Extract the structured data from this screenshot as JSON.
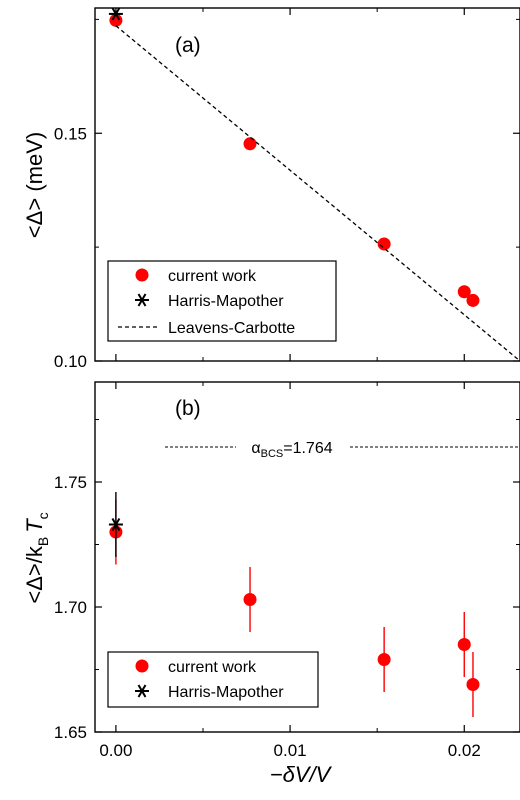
{
  "chart_data": [
    {
      "panel": "(a)",
      "type": "scatter",
      "title": "",
      "xlabel": "",
      "ylabel": "<Δ> (meV)",
      "xlim": [
        -0.0012,
        0.0232
      ],
      "ylim": [
        0.1,
        0.1775
      ],
      "y_ticks": [
        "0.10",
        "0.15"
      ],
      "y_tick_values": [
        0.1,
        0.15
      ],
      "x_ticks": [],
      "x_tick_values": [
        0,
        0.01,
        0.02
      ],
      "grid": false,
      "legend_position": "bottom-left",
      "series": [
        {
          "name": "current work",
          "marker": "filled-circle",
          "color": "#ff0000",
          "x": [
            0.0,
            0.0077,
            0.0154,
            0.02,
            0.0205
          ],
          "y": [
            0.1748,
            0.1477,
            0.1257,
            0.1152,
            0.1133
          ],
          "yerr": [
            0.0014,
            0.0014,
            0.0014,
            0.0014,
            0.0014
          ]
        },
        {
          "name": "Harris-Mapother",
          "marker": "asterisk",
          "color": "#000000",
          "x": [
            0.0
          ],
          "y": [
            0.1762
          ]
        },
        {
          "name": "Leavens-Carbotte",
          "type": "line",
          "style": "dashed",
          "color": "#000000",
          "x": [
            0.0,
            0.0232
          ],
          "y": [
            0.1736,
            0.1
          ]
        }
      ]
    },
    {
      "panel": "(b)",
      "type": "scatter",
      "title": "",
      "xlabel": "−δV/V",
      "ylabel": "<Δ>/kBTc",
      "xlim": [
        -0.0012,
        0.0232
      ],
      "ylim": [
        1.65,
        1.79
      ],
      "y_ticks": [
        "1.65",
        "1.70",
        "1.75"
      ],
      "y_tick_values": [
        1.65,
        1.7,
        1.75
      ],
      "x_ticks": [
        "0.00",
        "0.01",
        "0.02"
      ],
      "x_tick_values": [
        0,
        0.01,
        0.02
      ],
      "grid": false,
      "legend_position": "bottom-left",
      "series": [
        {
          "name": "current work",
          "marker": "filled-circle",
          "color": "#ff0000",
          "x": [
            0.0,
            0.0077,
            0.0154,
            0.02,
            0.0205
          ],
          "y": [
            1.73,
            1.703,
            1.679,
            1.685,
            1.669
          ],
          "yerr": [
            0.013,
            0.013,
            0.013,
            0.013,
            0.013
          ]
        },
        {
          "name": "Harris-Mapother",
          "marker": "asterisk",
          "color": "#000000",
          "x": [
            0.0
          ],
          "y": [
            1.733
          ],
          "yerr": [
            0.013
          ]
        }
      ],
      "reference_line": {
        "y": 1.764,
        "style": "dashed",
        "label_main": "α",
        "label_sub": "BCS",
        "label_value": "=1.764"
      }
    }
  ]
}
